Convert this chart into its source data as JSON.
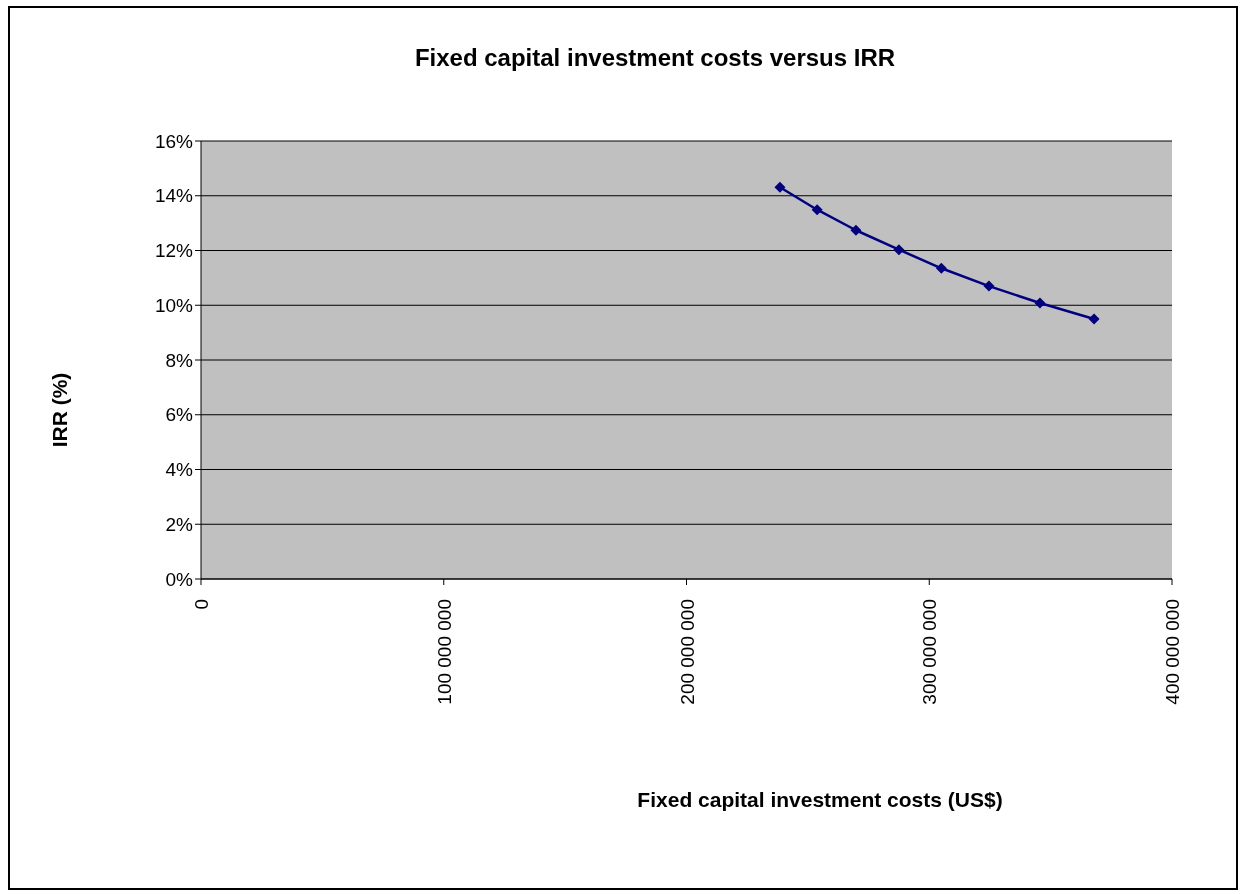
{
  "chart_data": {
    "type": "line",
    "title": "Fixed capital investment costs versus IRR",
    "xlabel": "Fixed capital investment costs (US$)",
    "ylabel": "IRR (%)",
    "series": [
      {
        "color": "#000080",
        "x": [
          238500000,
          253800000,
          269800000,
          287500000,
          305000000,
          324600000,
          345600000,
          367900000
        ],
        "values": [
          14.31,
          13.49,
          12.74,
          12.03,
          11.35,
          10.7,
          10.08,
          9.5
        ]
      }
    ],
    "xlim": [
      0,
      400000000
    ],
    "xticks": [
      0,
      {
        "value": 100000000,
        "label": "100 000 000"
      },
      {
        "value": 200000000,
        "label": "200 000 000"
      },
      {
        "value": 300000000,
        "label": "300 000 000"
      },
      {
        "value": 400000000,
        "label": "400 000 000"
      }
    ],
    "ylim": [
      0,
      16
    ],
    "yticks": [
      {
        "value": 0,
        "label": "0%"
      },
      {
        "value": 2,
        "label": "2%"
      },
      {
        "value": 4,
        "label": "4%"
      },
      {
        "value": 6,
        "label": "6%"
      },
      {
        "value": 8,
        "label": "8%"
      },
      {
        "value": 10,
        "label": "10%"
      },
      {
        "value": 12,
        "label": "12%"
      },
      {
        "value": 14,
        "label": "14%"
      },
      {
        "value": 16,
        "label": "16%"
      }
    ],
    "grid": "y",
    "marker": "diamond",
    "line_style": "solid"
  }
}
